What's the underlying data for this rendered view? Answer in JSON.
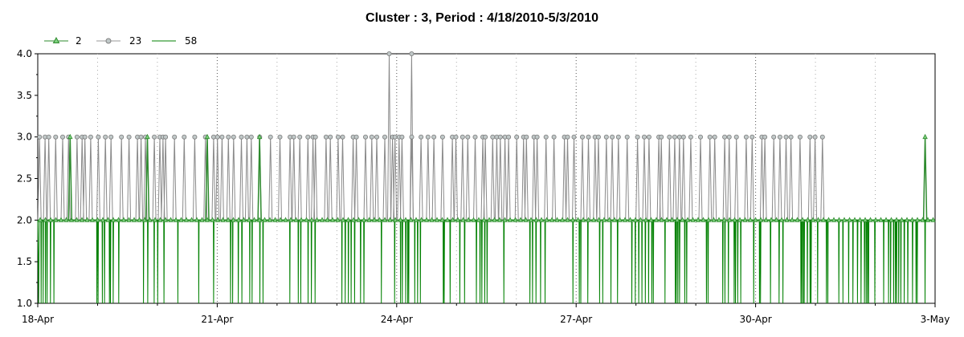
{
  "chart_data": {
    "type": "line",
    "title": "Cluster : 3, Period : 4/18/2010-5/3/2010",
    "xlabel": "",
    "ylabel": "",
    "x_range": [
      "2010-04-18",
      "2010-05-03"
    ],
    "x_ticks": [
      "18-Apr",
      "21-Apr",
      "24-Apr",
      "27-Apr",
      "30-Apr",
      "3-May"
    ],
    "y_range": [
      1.0,
      4.0
    ],
    "y_ticks": [
      "1.0",
      "1.5",
      "2.0",
      "2.5",
      "3.0",
      "3.5",
      "4.0"
    ],
    "grid": {
      "x_dotted_at_day_boundaries": true,
      "y": false
    },
    "legend_position": "top-left",
    "series": [
      {
        "name": "2",
        "color": "#2e8b2e",
        "marker": "triangle",
        "baseline": 2.0,
        "spikes": [
          {
            "x": "2010-04-18 13:00",
            "y": 3.0
          },
          {
            "x": "2010-04-19 20:00",
            "y": 3.0
          },
          {
            "x": "2010-04-20 20:00",
            "y": 3.0
          },
          {
            "x": "2010-04-21 17:00",
            "y": 3.0
          },
          {
            "x": "2010-05-02 20:00",
            "y": 3.0
          }
        ]
      },
      {
        "name": "23",
        "color": "#999999",
        "marker": "circle",
        "baseline": 2.0,
        "peaks": [
          {
            "x": "2010-04-23 21:00",
            "y": 4.0
          },
          {
            "x": "2010-04-24 06:00",
            "y": 4.0
          }
        ],
        "spike_value": 3.0,
        "spike_count": 120
      },
      {
        "name": "58",
        "color": "#008000",
        "marker": "none",
        "baseline": 2.0,
        "dip_value": 1.0,
        "dip_count": 300
      }
    ]
  }
}
